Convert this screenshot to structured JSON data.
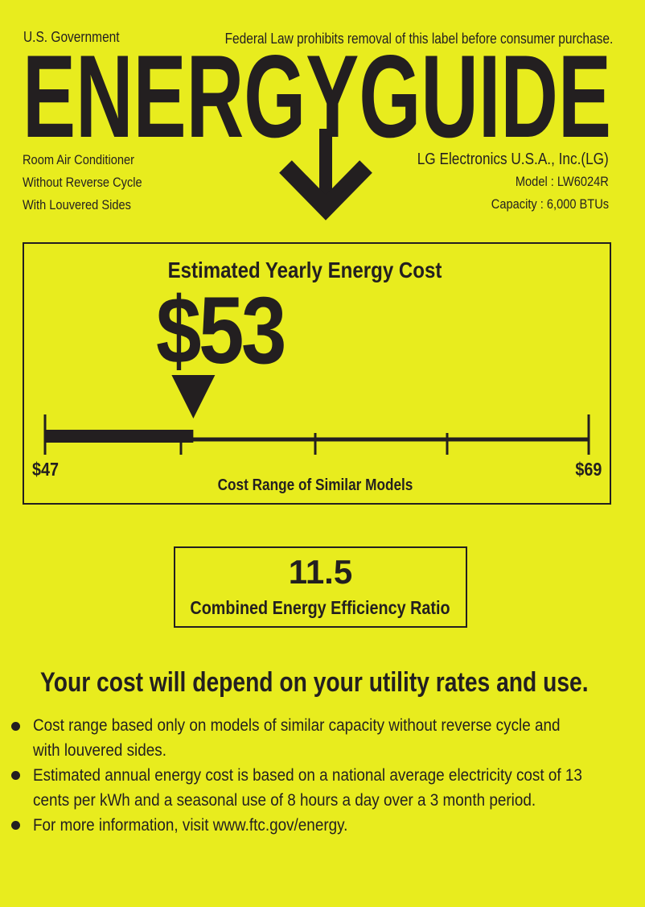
{
  "header": {
    "government": "U.S. Government",
    "notice": "Federal Law prohibits removal of this label before consumer purchase.",
    "logo": "ENERGYGUIDE",
    "product_lines": [
      "Room Air Conditioner",
      "Without Reverse Cycle",
      "With Louvered Sides"
    ],
    "manufacturer": "LG Electronics U.S.A., Inc.(LG)",
    "model": "Model : LW6024R",
    "capacity": "Capacity : 6,000 BTUs"
  },
  "cost": {
    "title": "Estimated Yearly Energy Cost",
    "value_label": "$53",
    "value": 53,
    "range_min": 47,
    "range_max": 69,
    "min_label": "$47",
    "max_label": "$69",
    "range_caption": "Cost Range of Similar Models"
  },
  "efficiency": {
    "value": "11.5",
    "label": "Combined Energy Efficiency Ratio"
  },
  "headline": "Your cost will depend on your utility rates and use.",
  "bullets": [
    [
      "Cost range based only on models of similar capacity without reverse cycle and",
      "with louvered sides."
    ],
    [
      "Estimated annual energy cost is based on a national average electricity cost of 13",
      "cents per kWh and a seasonal use of 8 hours a day over a 3 month period."
    ],
    [
      "For more information, visit www.ftc.gov/energy."
    ]
  ],
  "colors": {
    "background": "#e8ec1e",
    "ink": "#231f20"
  }
}
